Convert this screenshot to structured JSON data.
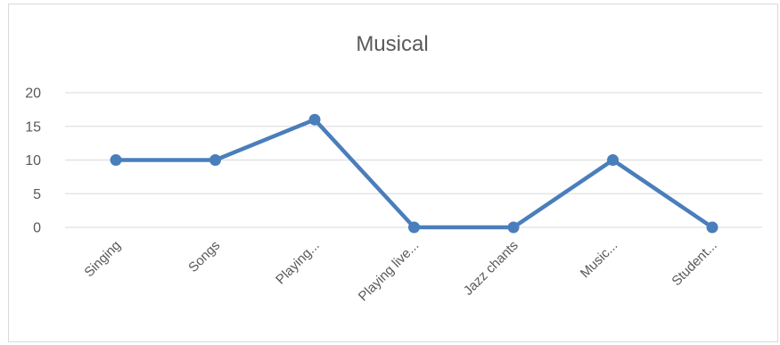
{
  "chart_data": {
    "type": "line",
    "title": "Musical",
    "categories": [
      "Singing",
      "Songs",
      "Playing...",
      "Playing live...",
      "Jazz chants",
      "Music...",
      "Student..."
    ],
    "series": [
      {
        "values": [
          10,
          10,
          16,
          0,
          0,
          10,
          0
        ]
      }
    ],
    "ylim": [
      0,
      20
    ],
    "yticks": [
      0,
      5,
      10,
      15,
      20
    ],
    "grid": true,
    "legend": "none",
    "colors": {
      "series": "#4a7ebb",
      "grid": "#d9d9d9",
      "text": "#595959"
    }
  }
}
